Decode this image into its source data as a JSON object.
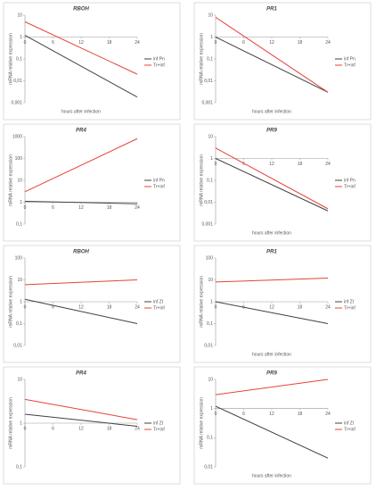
{
  "chart_data": [
    {
      "type": "line",
      "title": "RBOH",
      "x": [
        0,
        24
      ],
      "xlim": [
        0,
        24
      ],
      "xticks": [
        0,
        6,
        12,
        18,
        24
      ],
      "log_scale": true,
      "ylim": [
        0.001,
        10
      ],
      "yticks": [
        {
          "value": 0.001,
          "label": "0,001"
        },
        {
          "value": 0.01,
          "label": "0,01"
        },
        {
          "value": 0.1,
          "label": "0,1"
        },
        1,
        10
      ],
      "ylabel": "mRNA relative expression",
      "xlabel": "hours after infection",
      "series": [
        {
          "name": "inf Pn",
          "color": "#404040",
          "values": [
            1.2,
            0.0018
          ]
        },
        {
          "name": "Tr+inf",
          "color": "#e8413a",
          "values": [
            5,
            0.02
          ]
        }
      ]
    },
    {
      "type": "line",
      "title": "PR1",
      "x": [
        0,
        24
      ],
      "xlim": [
        0,
        24
      ],
      "xticks": [
        0,
        6,
        12,
        18,
        24
      ],
      "log_scale": true,
      "ylim": [
        0.001,
        10
      ],
      "yticks": [
        {
          "value": 0.001,
          "label": "0,001"
        },
        {
          "value": 0.01,
          "label": "0,01"
        },
        {
          "value": 0.1,
          "label": "0,1"
        },
        1,
        10
      ],
      "ylabel": "mRNA relative expression",
      "xlabel": "hours after infection",
      "series": [
        {
          "name": "inf Pn",
          "color": "#404040",
          "values": [
            1,
            0.003
          ]
        },
        {
          "name": "Tr+inf",
          "color": "#e8413a",
          "values": [
            8,
            0.003
          ]
        }
      ]
    },
    {
      "type": "line",
      "title": "PR4",
      "x": [
        0,
        24
      ],
      "xlim": [
        0,
        24
      ],
      "xticks": [
        0,
        6,
        12,
        18,
        24
      ],
      "log_scale": true,
      "ylim": [
        0.1,
        1000
      ],
      "yticks": [
        {
          "value": 0.1,
          "label": "0,1"
        },
        1,
        10,
        100,
        1000
      ],
      "ylabel": "mRNA relative expression",
      "series": [
        {
          "name": "inf Pn",
          "color": "#404040",
          "values": [
            1.1,
            0.85
          ]
        },
        {
          "name": "Tr+inf",
          "color": "#e8413a",
          "values": [
            3,
            800
          ]
        }
      ]
    },
    {
      "type": "line",
      "title": "PR9",
      "x": [
        0,
        24
      ],
      "xlim": [
        0,
        24
      ],
      "xticks": [
        0,
        6,
        12,
        18,
        24
      ],
      "log_scale": true,
      "ylim": [
        0.001,
        10
      ],
      "yticks": [
        {
          "value": 0.001,
          "label": "0,001"
        },
        {
          "value": 0.01,
          "label": "0,01"
        },
        {
          "value": 0.1,
          "label": "0,1"
        },
        1,
        10
      ],
      "ylabel": "mRNA relative expression",
      "xlabel": "hours after infection",
      "series": [
        {
          "name": "inf Pn",
          "color": "#404040",
          "values": [
            1,
            0.004
          ]
        },
        {
          "name": "Tr+inf",
          "color": "#e8413a",
          "values": [
            3,
            0.005
          ]
        }
      ]
    },
    {
      "type": "line",
      "title": "RBOH",
      "x": [
        0,
        24
      ],
      "xlim": [
        0,
        24
      ],
      "xticks": [
        0,
        6,
        12,
        18,
        24
      ],
      "log_scale": true,
      "ylim": [
        0.01,
        100
      ],
      "yticks": [
        {
          "value": 0.01,
          "label": "0,01"
        },
        {
          "value": 0.1,
          "label": "0,1"
        },
        1,
        10,
        100
      ],
      "ylabel": "mRNA relative expression",
      "series": [
        {
          "name": "inf Zt",
          "color": "#404040",
          "values": [
            1.3,
            0.1
          ]
        },
        {
          "name": "Tr+inf",
          "color": "#e8413a",
          "values": [
            6,
            10
          ]
        }
      ]
    },
    {
      "type": "line",
      "title": "PR1",
      "x": [
        0,
        24
      ],
      "xlim": [
        0,
        24
      ],
      "xticks": [
        0,
        6,
        12,
        18,
        24
      ],
      "log_scale": true,
      "ylim": [
        0.01,
        100
      ],
      "yticks": [
        {
          "value": 0.01,
          "label": "0,01"
        },
        {
          "value": 0.1,
          "label": "0,1"
        },
        1,
        10,
        100
      ],
      "ylabel": "mRNA relative expression",
      "xlabel": "hours after infection",
      "series": [
        {
          "name": "inf Zt",
          "color": "#404040",
          "values": [
            1,
            0.1
          ]
        },
        {
          "name": "Tr+inf",
          "color": "#e8413a",
          "values": [
            8,
            12
          ]
        }
      ]
    },
    {
      "type": "line",
      "title": "PR4",
      "x": [
        0,
        24
      ],
      "xlim": [
        0,
        24
      ],
      "xticks": [
        0,
        6,
        12,
        18,
        24
      ],
      "log_scale": true,
      "ylim": [
        0.1,
        10
      ],
      "yticks": [
        {
          "value": 0.1,
          "label": "0,1"
        },
        1,
        10
      ],
      "ylabel": "mRNA relative expression",
      "series": [
        {
          "name": "inf Zt",
          "color": "#404040",
          "values": [
            1.6,
            0.85
          ]
        },
        {
          "name": "Tr+inf",
          "color": "#e8413a",
          "values": [
            3.5,
            1.2
          ]
        }
      ]
    },
    {
      "type": "line",
      "title": "PR9",
      "x": [
        0,
        24
      ],
      "xlim": [
        0,
        24
      ],
      "xticks": [
        0,
        6,
        12,
        18,
        24
      ],
      "log_scale": true,
      "ylim": [
        0.01,
        10
      ],
      "yticks": [
        {
          "value": 0.01,
          "label": "0,01"
        },
        {
          "value": 0.1,
          "label": "0,1"
        },
        1,
        10
      ],
      "ylabel": "mRNA relative expression",
      "xlabel": "hours after infection",
      "series": [
        {
          "name": "inf Zt",
          "color": "#404040",
          "values": [
            1.2,
            0.02
          ]
        },
        {
          "name": "Tr+inf",
          "color": "#e8413a",
          "values": [
            3,
            10
          ]
        }
      ]
    }
  ]
}
